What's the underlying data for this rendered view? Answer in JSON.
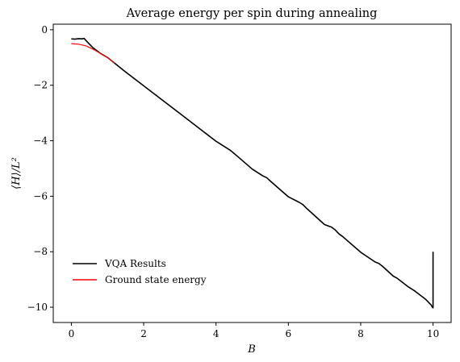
{
  "chart_data": {
    "type": "line",
    "title": "Average energy per spin during annealing",
    "xlabel": "B",
    "ylabel": "⟨H⟩/L²",
    "xlim": [
      -0.5,
      10.5
    ],
    "ylim": [
      -10.55,
      0.2
    ],
    "xticks": [
      0,
      2,
      4,
      6,
      8,
      10
    ],
    "yticks": [
      0,
      -2,
      -4,
      -6,
      -8,
      -10
    ],
    "xtick_labels": [
      "0",
      "2",
      "4",
      "6",
      "8",
      "10"
    ],
    "ytick_labels": [
      "0",
      "−2",
      "−4",
      "−6",
      "−8",
      "−10"
    ],
    "grid": false,
    "legend_position": "lower-left",
    "series": [
      {
        "name": "VQA Results",
        "color": "#000000",
        "x": [
          0.0,
          0.1,
          0.2,
          0.3,
          0.35,
          0.45,
          0.6,
          0.8,
          1.0,
          1.5,
          2.0,
          2.5,
          3.0,
          3.5,
          4.0,
          4.4,
          4.5,
          4.6,
          5.0,
          5.3,
          5.4,
          5.5,
          6.0,
          6.3,
          6.4,
          6.5,
          7.0,
          7.2,
          7.3,
          7.4,
          7.5,
          8.0,
          8.4,
          8.5,
          8.6,
          8.9,
          9.0,
          9.3,
          9.5,
          9.8,
          9.95,
          9.98,
          10.0,
          10.0
        ],
        "y": [
          -0.33,
          -0.34,
          -0.32,
          -0.33,
          -0.31,
          -0.45,
          -0.65,
          -0.85,
          -1.0,
          -1.52,
          -2.02,
          -2.52,
          -3.02,
          -3.52,
          -4.02,
          -4.35,
          -4.46,
          -4.57,
          -5.02,
          -5.27,
          -5.33,
          -5.45,
          -6.02,
          -6.22,
          -6.3,
          -6.43,
          -7.02,
          -7.12,
          -7.22,
          -7.36,
          -7.45,
          -8.02,
          -8.37,
          -8.42,
          -8.52,
          -8.88,
          -8.95,
          -9.25,
          -9.42,
          -9.72,
          -9.92,
          -10.0,
          -10.02,
          -8.0
        ]
      },
      {
        "name": "Ground state energy",
        "color": "#ff0000",
        "x": [
          0.0,
          0.2,
          0.4,
          0.6,
          0.8,
          1.0,
          1.2
        ],
        "y": [
          -0.5,
          -0.52,
          -0.58,
          -0.7,
          -0.85,
          -1.0,
          -1.2
        ]
      }
    ]
  }
}
